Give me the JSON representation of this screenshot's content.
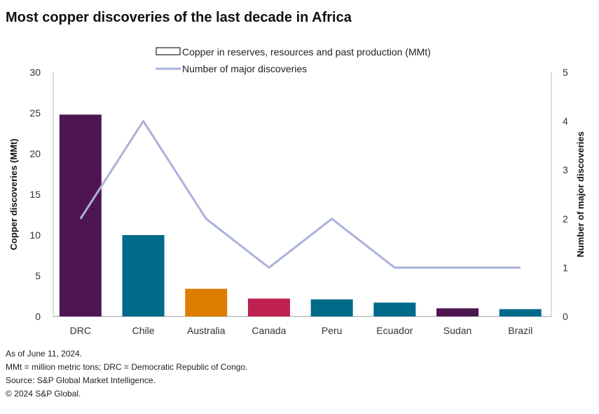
{
  "title": "Most copper discoveries of the last decade in Africa",
  "chart_data": {
    "type": "bar+line",
    "categories": [
      "DRC",
      "Chile",
      "Australia",
      "Canada",
      "Peru",
      "Ecuador",
      "Sudan",
      "Brazil"
    ],
    "series": [
      {
        "name": "Copper in reserves, resources and past production (MMt)",
        "type": "bar",
        "axis": "left",
        "values": [
          24.8,
          10.0,
          3.4,
          2.2,
          2.1,
          1.7,
          1.0,
          0.9
        ],
        "colors": [
          "#4e1553",
          "#006a8a",
          "#de7c00",
          "#be214f",
          "#006a8a",
          "#006a8a",
          "#4e1553",
          "#006a8a"
        ]
      },
      {
        "name": "Number of major discoveries",
        "type": "line",
        "axis": "right",
        "values": [
          2,
          4,
          2,
          1,
          2,
          1,
          1,
          1
        ],
        "color": "#aab1dc"
      }
    ],
    "ylabel": "Copper discoveries (MMt)",
    "y2label": "Number of major discoveries",
    "ylim": [
      0,
      30
    ],
    "yticks": [
      "0",
      "5",
      "10",
      "15",
      "20",
      "25",
      "30"
    ],
    "y2lim": [
      0,
      5
    ],
    "y2ticks": [
      "0",
      "1",
      "2",
      "3",
      "4",
      "5"
    ],
    "grid": false,
    "legend": "top"
  },
  "notes": [
    "As of June 11, 2024.",
    "MMt = million metric tons; DRC = Democratic Republic of Congo.",
    "Source: S&P Global Market Intelligence.",
    "© 2024 S&P Global."
  ]
}
